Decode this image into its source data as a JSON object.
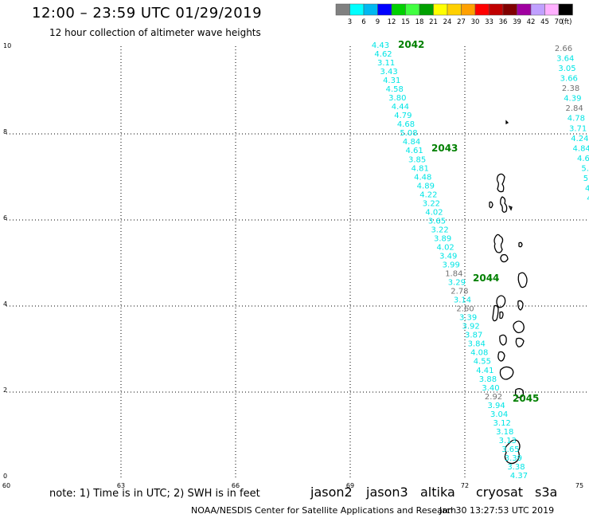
{
  "header": {
    "title": "12:00 – 23:59 UTC 01/29/2019",
    "subtitle": "12 hour collection of altimeter wave heights"
  },
  "legend": {
    "colors": [
      "#808080",
      "#00ffff",
      "#00b8f0",
      "#0000ff",
      "#00d000",
      "#40ff40",
      "#00a000",
      "#ffff00",
      "#ffd000",
      "#ffa000",
      "#ff0000",
      "#c00000",
      "#800000",
      "#a000a0",
      "#c0a0ff",
      "#ffb0ff",
      "#000000"
    ],
    "labels": [
      "3",
      "6",
      "9",
      "12",
      "15",
      "18",
      "21",
      "24",
      "27",
      "30",
      "33",
      "36",
      "39",
      "42",
      "45",
      "70"
    ],
    "unit": "(ft)"
  },
  "axes": {
    "x_ticks": [
      "60",
      "63",
      "66",
      "69",
      "72",
      "75"
    ],
    "y_ticks": [
      "10",
      "8",
      "6",
      "4",
      "2",
      "0"
    ]
  },
  "passes": [
    {
      "id": "2042",
      "values": [
        "4.43",
        "4.62",
        "3.11",
        "3.43",
        "4.31",
        "4.58",
        "3.80",
        "4.44",
        "4.79",
        "4.68",
        "5.08",
        "4.84",
        "4.61",
        "3.85",
        "4.81",
        "4.48",
        "4.89",
        "4.22",
        "3.22",
        "4.02",
        "3.65",
        "3.22",
        "3.89",
        "4.02",
        "3.49",
        "3.99",
        "1.84",
        "3.29",
        "2.78",
        "3.14",
        "2.60",
        "3.39",
        "3.92",
        "3.87",
        "3.84",
        "4.08",
        "4.55",
        "4.41",
        "3.88",
        "3.40",
        "2.92",
        "3.94",
        "3.04",
        "3.12",
        "3.18",
        "3.13",
        "3.65",
        "3.39",
        "3.38",
        "4.37"
      ]
    },
    {
      "id": "2043",
      "values": []
    },
    {
      "id": "2044",
      "values": []
    },
    {
      "id": "2045",
      "values": []
    },
    {
      "id": "right",
      "values": [
        "2.66",
        "3.64",
        "3.05",
        "3.66",
        "2.38",
        "4.39",
        "2.84",
        "4.78",
        "3.71",
        "4.24",
        "4.84",
        "4.6",
        "5.",
        "5.",
        "4.",
        "4."
      ]
    }
  ],
  "footer": {
    "note": "note: 1) Time is in UTC; 2) SWH is in feet",
    "satellites": [
      {
        "name": "jason2",
        "color": "#0000ff"
      },
      {
        "name": "jason3",
        "color": "#008000"
      },
      {
        "name": "altika",
        "color": "#ff8c00"
      },
      {
        "name": "cryosat",
        "color": "#ff0000"
      },
      {
        "name": "s3a",
        "color": "#800000"
      }
    ],
    "credit": "NOAA/NESDIS Center for Satellite Applications and Research",
    "timestamp": "Jan 30 13:27:53 UTC 2019"
  }
}
